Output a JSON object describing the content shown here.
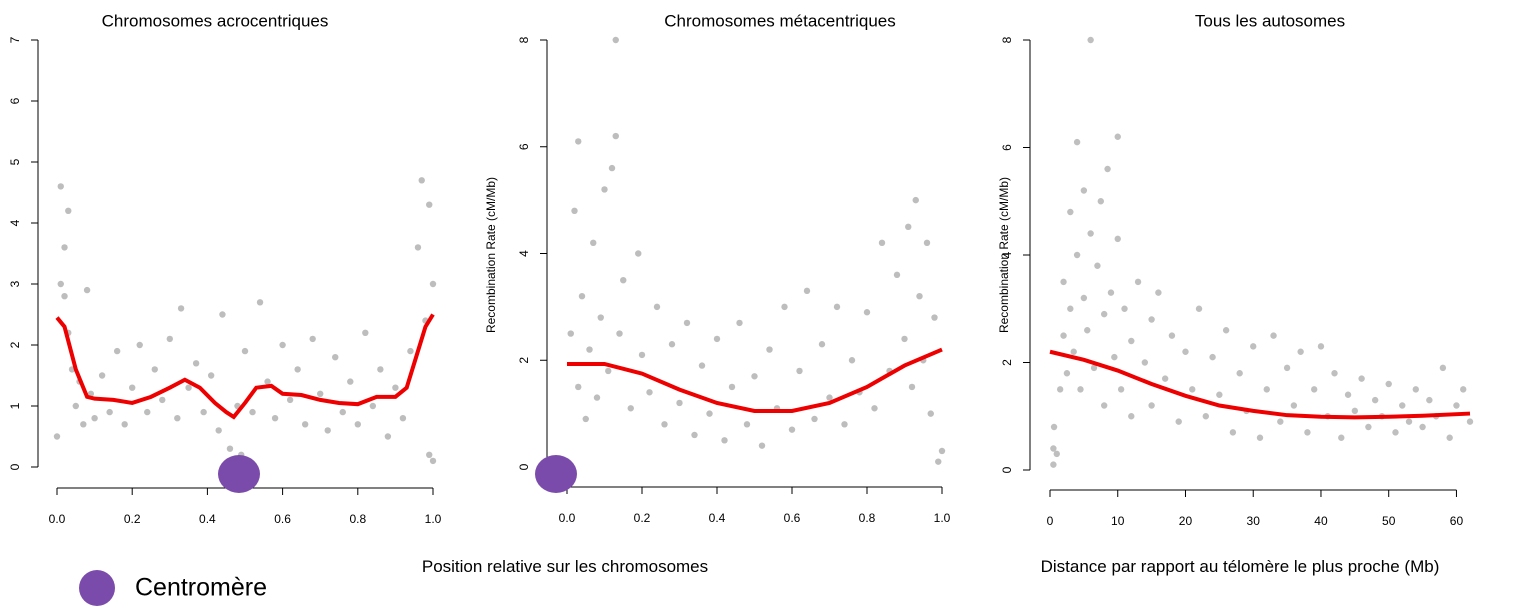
{
  "chart_data": [
    {
      "type": "scatter",
      "title": "Chromosomes acrocentriques",
      "xlim": [
        0,
        1
      ],
      "ylim": [
        0,
        7
      ],
      "xticks": [
        {
          "value": 0,
          "label": "0.0"
        },
        0.2,
        0.4,
        0.6,
        0.8,
        {
          "value": 1,
          "label": "1.0"
        }
      ],
      "yticks": [
        0,
        1,
        2,
        3,
        4,
        5,
        6,
        7
      ],
      "color": "#bdbdbd",
      "trend_color": "#ee0000",
      "x": [
        0.0,
        0.01,
        0.01,
        0.02,
        0.02,
        0.03,
        0.03,
        0.04,
        0.05,
        0.06,
        0.07,
        0.08,
        0.09,
        0.1,
        0.12,
        0.14,
        0.16,
        0.18,
        0.2,
        0.22,
        0.24,
        0.26,
        0.28,
        0.3,
        0.32,
        0.33,
        0.35,
        0.37,
        0.39,
        0.41,
        0.43,
        0.44,
        0.46,
        0.48,
        0.49,
        0.5,
        0.52,
        0.54,
        0.56,
        0.58,
        0.6,
        0.62,
        0.64,
        0.66,
        0.68,
        0.7,
        0.72,
        0.74,
        0.76,
        0.78,
        0.8,
        0.82,
        0.84,
        0.86,
        0.88,
        0.9,
        0.92,
        0.94,
        0.96,
        0.97,
        0.98,
        0.99,
        0.99,
        1.0,
        1.0
      ],
      "y": [
        0.5,
        3.0,
        4.6,
        3.6,
        2.8,
        4.2,
        2.2,
        1.6,
        1.0,
        1.4,
        0.7,
        2.9,
        1.2,
        0.8,
        1.5,
        0.9,
        1.9,
        0.7,
        1.3,
        2.0,
        0.9,
        1.6,
        1.1,
        2.1,
        0.8,
        2.6,
        1.3,
        1.7,
        0.9,
        1.5,
        0.6,
        2.5,
        0.3,
        1.0,
        0.2,
        1.9,
        0.9,
        2.7,
        1.4,
        0.8,
        2.0,
        1.1,
        1.6,
        0.7,
        2.1,
        1.2,
        0.6,
        1.8,
        0.9,
        1.4,
        0.7,
        2.2,
        1.0,
        1.6,
        0.5,
        1.3,
        0.8,
        1.9,
        3.6,
        4.7,
        2.4,
        4.3,
        0.2,
        0.1,
        3.0
      ],
      "trend_x": [
        0,
        0.02,
        0.05,
        0.08,
        0.1,
        0.15,
        0.2,
        0.25,
        0.3,
        0.34,
        0.38,
        0.42,
        0.45,
        0.47,
        0.5,
        0.53,
        0.57,
        0.6,
        0.65,
        0.7,
        0.75,
        0.8,
        0.85,
        0.9,
        0.93,
        0.96,
        0.98,
        1.0
      ],
      "trend_y": [
        2.45,
        2.3,
        1.6,
        1.15,
        1.12,
        1.1,
        1.05,
        1.15,
        1.3,
        1.43,
        1.3,
        1.05,
        0.9,
        0.82,
        1.05,
        1.3,
        1.33,
        1.2,
        1.18,
        1.1,
        1.05,
        1.03,
        1.15,
        1.15,
        1.3,
        1.9,
        2.3,
        2.5
      ]
    },
    {
      "type": "scatter",
      "title": "Chromosomes métacentriques",
      "ylabel": "Recombination Rate (cM/Mb)",
      "xlabel": "Position relative sur les chromosomes",
      "xlim": [
        0,
        1
      ],
      "ylim": [
        0,
        8
      ],
      "xticks": [
        {
          "value": 0,
          "label": "0.0"
        },
        0.2,
        0.4,
        0.6,
        0.8,
        {
          "value": 1,
          "label": "1.0"
        }
      ],
      "yticks": [
        0,
        2,
        4,
        6,
        8
      ],
      "color": "#bdbdbd",
      "trend_color": "#ee0000",
      "x": [
        0.0,
        0.01,
        0.02,
        0.03,
        0.03,
        0.04,
        0.05,
        0.06,
        0.07,
        0.08,
        0.09,
        0.1,
        0.11,
        0.12,
        0.13,
        0.13,
        0.14,
        0.15,
        0.17,
        0.19,
        0.2,
        0.22,
        0.24,
        0.26,
        0.28,
        0.3,
        0.32,
        0.34,
        0.36,
        0.38,
        0.4,
        0.42,
        0.44,
        0.46,
        0.48,
        0.5,
        0.52,
        0.54,
        0.56,
        0.58,
        0.6,
        0.62,
        0.64,
        0.66,
        0.68,
        0.7,
        0.72,
        0.74,
        0.76,
        0.78,
        0.8,
        0.82,
        0.84,
        0.86,
        0.88,
        0.9,
        0.91,
        0.92,
        0.93,
        0.94,
        0.95,
        0.96,
        0.97,
        0.98,
        0.99,
        1.0
      ],
      "y": [
        0.1,
        2.5,
        4.8,
        6.1,
        1.5,
        3.2,
        0.9,
        2.2,
        4.2,
        1.3,
        2.8,
        5.2,
        1.8,
        5.6,
        8.0,
        6.2,
        2.5,
        3.5,
        1.1,
        4.0,
        2.1,
        1.4,
        3.0,
        0.8,
        2.3,
        1.2,
        2.7,
        0.6,
        1.9,
        1.0,
        2.4,
        0.5,
        1.5,
        2.7,
        0.8,
        1.7,
        0.4,
        2.2,
        1.1,
        3.0,
        0.7,
        1.8,
        3.3,
        0.9,
        2.3,
        1.3,
        3.0,
        0.8,
        2.0,
        1.4,
        2.9,
        1.1,
        4.2,
        1.8,
        3.6,
        2.4,
        4.5,
        1.5,
        5.0,
        3.2,
        2.0,
        4.2,
        1.0,
        2.8,
        0.1,
        0.3
      ],
      "trend_x": [
        0,
        0.1,
        0.2,
        0.3,
        0.4,
        0.5,
        0.6,
        0.7,
        0.8,
        0.9,
        1.0
      ],
      "trend_y": [
        1.93,
        1.93,
        1.75,
        1.45,
        1.2,
        1.05,
        1.05,
        1.2,
        1.5,
        1.9,
        2.2
      ]
    },
    {
      "type": "scatter",
      "title": "Tous les autosomes",
      "ylabel": "Recombination Rate (cM/Mb)",
      "xlabel": "Distance par rapport au télomère le plus proche (Mb)",
      "xlim": [
        0,
        62
      ],
      "ylim": [
        0,
        8
      ],
      "xticks": [
        0,
        10,
        20,
        30,
        40,
        50,
        60
      ],
      "yticks": [
        0,
        2,
        4,
        6,
        8
      ],
      "color": "#000000",
      "trend_color": "#ee0000",
      "x": [
        0.5,
        0.5,
        0.6,
        1,
        1.5,
        2,
        2,
        2.5,
        3,
        3,
        3.5,
        4,
        4,
        4.5,
        5,
        5,
        5.5,
        6,
        6,
        6.5,
        7,
        7.5,
        8,
        8,
        8.5,
        9,
        9.5,
        10,
        10,
        10.5,
        11,
        12,
        12,
        13,
        14,
        15,
        15,
        16,
        17,
        18,
        19,
        20,
        21,
        22,
        23,
        24,
        25,
        26,
        27,
        28,
        29,
        30,
        31,
        32,
        33,
        34,
        35,
        36,
        37,
        38,
        39,
        40,
        41,
        42,
        43,
        44,
        45,
        46,
        47,
        48,
        49,
        50,
        51,
        52,
        53,
        54,
        55,
        56,
        57,
        58,
        59,
        60,
        61,
        62
      ],
      "y": [
        0.1,
        0.4,
        0.8,
        0.3,
        1.5,
        2.5,
        3.5,
        1.8,
        4.8,
        3.0,
        2.2,
        6.1,
        4.0,
        1.5,
        5.2,
        3.2,
        2.6,
        8.0,
        4.4,
        1.9,
        3.8,
        5.0,
        2.9,
        1.2,
        5.6,
        3.3,
        2.1,
        6.2,
        4.3,
        1.5,
        3.0,
        2.4,
        1.0,
        3.5,
        2.0,
        2.8,
        1.2,
        3.3,
        1.7,
        2.5,
        0.9,
        2.2,
        1.5,
        3.0,
        1.0,
        2.1,
        1.4,
        2.6,
        0.7,
        1.8,
        1.1,
        2.3,
        0.6,
        1.5,
        2.5,
        0.9,
        1.9,
        1.2,
        2.2,
        0.7,
        1.5,
        2.3,
        1.0,
        1.8,
        0.6,
        1.4,
        1.1,
        1.7,
        0.8,
        1.3,
        1.0,
        1.6,
        0.7,
        1.2,
        0.9,
        1.5,
        0.8,
        1.3,
        1.0,
        1.9,
        0.6,
        1.2,
        1.5,
        0.9
      ],
      "trend_x": [
        0,
        5,
        10,
        15,
        20,
        25,
        30,
        35,
        40,
        45,
        50,
        55,
        62
      ],
      "trend_y": [
        2.2,
        2.05,
        1.85,
        1.6,
        1.38,
        1.2,
        1.1,
        1.02,
        0.99,
        0.98,
        0.99,
        1.01,
        1.05
      ]
    }
  ],
  "legend": {
    "label": "Centromère",
    "color": "#7b4bab"
  }
}
